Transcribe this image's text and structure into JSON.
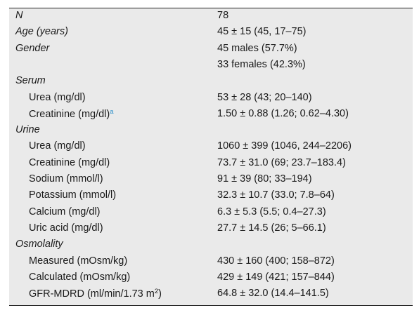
{
  "rows": [
    {
      "label": "N",
      "italic": true,
      "indent": false,
      "value": "78"
    },
    {
      "label": "Age (years)",
      "italic": true,
      "indent": false,
      "value": "45 ± 15 (45, 17–75)"
    },
    {
      "label": "Gender",
      "italic": true,
      "indent": false,
      "value": "45 males (57.7%)"
    },
    {
      "label": "",
      "italic": false,
      "indent": false,
      "value": "33 females (42.3%)"
    },
    {
      "label": "Serum",
      "italic": true,
      "indent": false,
      "value": ""
    },
    {
      "label": "Urea (mg/dl)",
      "italic": false,
      "indent": true,
      "value": "53 ± 28 (43; 20–140)"
    },
    {
      "label": "Creatinine (mg/dl)",
      "italic": false,
      "indent": true,
      "value": "1.50 ± 0.88 (1.26; 0.62–4.30)",
      "footnote": "a"
    },
    {
      "label": "Urine",
      "italic": true,
      "indent": false,
      "value": ""
    },
    {
      "label": "Urea (mg/dl)",
      "italic": false,
      "indent": true,
      "value": "1060 ± 399 (1046, 244–2206)"
    },
    {
      "label": "Creatinine (mg/dl)",
      "italic": false,
      "indent": true,
      "value": "73.7 ± 31.0 (69; 23.7–183.4)"
    },
    {
      "label": "Sodium (mmol/l)",
      "italic": false,
      "indent": true,
      "value": "91 ± 39 (80; 33–194)"
    },
    {
      "label": "Potassium (mmol/l)",
      "italic": false,
      "indent": true,
      "value": "32.3 ± 10.7 (33.0; 7.8–64)"
    },
    {
      "label": "Calcium (mg/dl)",
      "italic": false,
      "indent": true,
      "value": "6.3 ± 5.3 (5.5; 0.4–27.3)"
    },
    {
      "label": "Uric acid (mg/dl)",
      "italic": false,
      "indent": true,
      "value": "27.7 ± 14.5 (26; 5–66.1)"
    },
    {
      "label": "Osmolality",
      "italic": true,
      "indent": false,
      "value": ""
    },
    {
      "label": "Measured (mOsm/kg)",
      "italic": false,
      "indent": true,
      "value": "430 ± 160 (400; 158–872)"
    },
    {
      "label": "Calculated (mOsm/kg)",
      "italic": false,
      "indent": true,
      "value": "429 ± 149 (421; 157–844)"
    },
    {
      "label": "GFR-MDRD (ml/min/1.73 m",
      "label_sup": "2",
      "label_after": ")",
      "italic": false,
      "indent": true,
      "value": "64.8 ± 32.0 (14.4–141.5)"
    }
  ]
}
